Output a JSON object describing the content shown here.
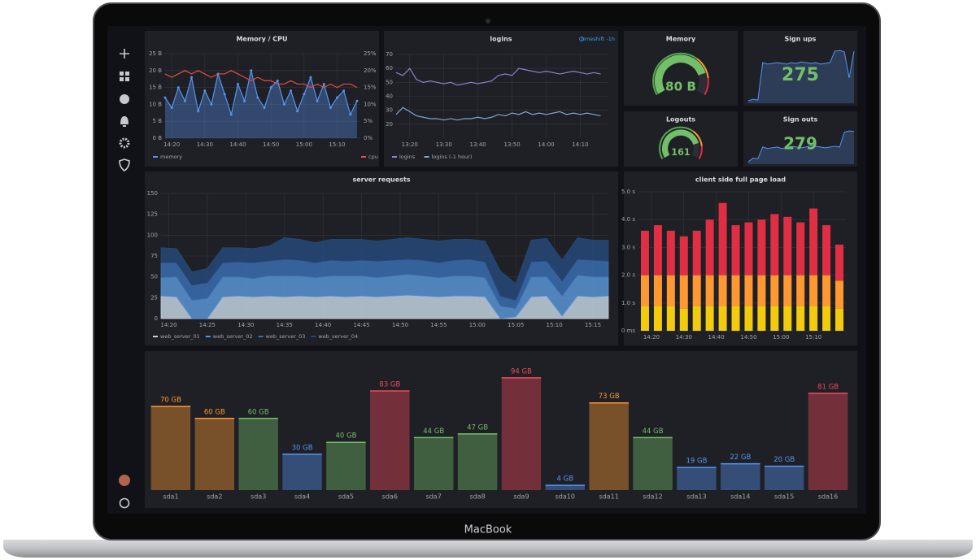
{
  "brand": "MacBook",
  "chart_data": [
    {
      "type": "line",
      "title": "Memory / CPU",
      "grid": true,
      "x": [
        "14:18",
        "14:20",
        "14:22",
        "14:24",
        "14:26",
        "14:28",
        "14:30",
        "14:32",
        "14:34",
        "14:36",
        "14:38",
        "14:40",
        "14:42",
        "14:44",
        "14:46",
        "14:48",
        "14:50",
        "14:52",
        "14:54",
        "14:56",
        "14:58",
        "15:00",
        "15:02",
        "15:04",
        "15:06",
        "15:08",
        "15:10",
        "15:12",
        "15:14",
        "15:16"
      ],
      "xlim": [
        "14:18",
        "15:17"
      ],
      "xticks": [
        "14:20",
        "14:30",
        "14:40",
        "14:50",
        "15:00",
        "15:10"
      ],
      "ylim": [
        0,
        25
      ],
      "yticks": [
        {
          "value": 0,
          "label": "0 B"
        },
        {
          "value": 5,
          "label": "5 B"
        },
        {
          "value": 10,
          "label": "10 B"
        },
        {
          "value": 15,
          "label": "15 B"
        },
        {
          "value": 20,
          "label": "20 B"
        },
        {
          "value": 25,
          "label": "25 B"
        }
      ],
      "y2lim": [
        0,
        25
      ],
      "y2ticks": [
        {
          "value": 0,
          "label": "0%"
        },
        {
          "value": 5,
          "label": "5%"
        },
        {
          "value": 10,
          "label": "10%"
        },
        {
          "value": 15,
          "label": "15%"
        },
        {
          "value": 20,
          "label": "20%"
        },
        {
          "value": 25,
          "label": "25%"
        }
      ],
      "series": [
        {
          "name": "memory",
          "color": "#5794f2",
          "fill": true,
          "points": true,
          "values": [
            12,
            9,
            15,
            11,
            18,
            8,
            14,
            10,
            19,
            13,
            7,
            16,
            11,
            20,
            12,
            9,
            15,
            17,
            10,
            14,
            8,
            13,
            18,
            11,
            16,
            9,
            12,
            14,
            7,
            11
          ]
        },
        {
          "name": "cpu",
          "color": "#e24d42",
          "axis": "y2",
          "values": [
            19,
            18,
            19,
            20,
            19,
            20,
            19,
            18,
            19,
            19,
            20,
            19,
            18,
            17,
            18,
            17,
            17,
            16,
            16,
            17,
            16,
            16,
            15,
            16,
            15,
            16,
            15,
            16,
            16,
            15
          ]
        }
      ]
    },
    {
      "type": "line",
      "title": "logins",
      "annotation": "timeshift -1h",
      "grid": true,
      "x": [
        "13:16",
        "13:18",
        "13:20",
        "13:22",
        "13:24",
        "13:26",
        "13:28",
        "13:30",
        "13:32",
        "13:34",
        "13:36",
        "13:38",
        "13:40",
        "13:42",
        "13:44",
        "13:46",
        "13:48",
        "13:50",
        "13:52",
        "13:54",
        "13:56",
        "13:58",
        "14:00",
        "14:02",
        "14:04",
        "14:06",
        "14:08",
        "14:10",
        "14:12",
        "14:14",
        "14:16"
      ],
      "xlim": [
        "13:16",
        "14:18"
      ],
      "xticks": [
        "13:20",
        "13:30",
        "13:40",
        "13:50",
        "14:00",
        "14:10"
      ],
      "ylim": [
        10,
        70
      ],
      "yticks": [
        20,
        30,
        40,
        50,
        60,
        70
      ],
      "series": [
        {
          "name": "logins",
          "color": "#8f7fd0",
          "values": [
            57,
            55,
            60,
            52,
            50,
            51,
            50,
            49,
            50,
            48,
            49,
            50,
            49,
            50,
            51,
            55,
            56,
            55,
            60,
            59,
            58,
            57,
            58,
            57,
            56,
            57,
            58,
            57,
            56,
            57,
            56
          ]
        },
        {
          "name": "logins (-1 hour)",
          "color": "#7ea6d8",
          "values": [
            27,
            32,
            29,
            26,
            25,
            24,
            24,
            23,
            24,
            23,
            24,
            24,
            25,
            24,
            25,
            27,
            26,
            28,
            27,
            29,
            27,
            28,
            27,
            28,
            29,
            27,
            28,
            27,
            28,
            27,
            26
          ]
        }
      ]
    },
    {
      "type": "gauge",
      "title": "Memory",
      "value": 80,
      "value_label": "80 B",
      "min": 0,
      "max": 100,
      "color": "#73bf69"
    },
    {
      "type": "stat",
      "title": "Sign ups",
      "value": 275,
      "color": "#73bf69",
      "spark_color": "#5794f2",
      "sparkline": [
        30,
        32,
        31,
        80,
        78,
        79,
        80,
        79,
        78,
        80,
        79,
        81,
        80,
        79,
        80,
        78,
        79,
        80,
        95,
        96,
        94,
        60,
        95
      ]
    },
    {
      "type": "gauge",
      "title": "Logouts",
      "value": 161,
      "min": 0,
      "max": 200,
      "color": "#73bf69"
    },
    {
      "type": "stat",
      "title": "Sign outs",
      "value": 279,
      "color": "#73bf69",
      "spark_color": "#5794f2",
      "sparkline": [
        40,
        45,
        44,
        60,
        58,
        59,
        60,
        58,
        59,
        61,
        60,
        59,
        60,
        62,
        61,
        60,
        59,
        60,
        61,
        60,
        80,
        82,
        81
      ]
    },
    {
      "type": "area",
      "title": "server requests",
      "stacked": true,
      "grid": true,
      "x": [
        "14:19",
        "14:21",
        "14:23",
        "14:25",
        "14:27",
        "14:29",
        "14:31",
        "14:33",
        "14:35",
        "14:37",
        "14:39",
        "14:41",
        "14:43",
        "14:45",
        "14:47",
        "14:49",
        "14:51",
        "14:53",
        "14:55",
        "14:57",
        "14:59",
        "15:01",
        "15:03",
        "15:05",
        "15:07",
        "15:09",
        "15:11",
        "15:13",
        "15:15",
        "15:17"
      ],
      "xlim": [
        "14:19",
        "15:17"
      ],
      "xticks": [
        "14:20",
        "14:25",
        "14:30",
        "14:35",
        "14:40",
        "14:45",
        "14:50",
        "14:55",
        "15:00",
        "15:05",
        "15:10",
        "15:15"
      ],
      "ylim": [
        0,
        150
      ],
      "yticks": [
        0,
        25,
        50,
        75,
        100,
        125,
        150
      ],
      "series": [
        {
          "name": "web_server_01",
          "color": "#c3d3e0",
          "values": [
            27,
            26,
            0,
            0,
            26,
            27,
            26,
            27,
            26,
            27,
            26,
            27,
            26,
            27,
            26,
            27,
            28,
            27,
            26,
            27,
            27,
            26,
            0,
            2,
            26,
            27,
            3,
            27,
            26,
            27
          ]
        },
        {
          "name": "web_server_02",
          "color": "#5b95d6",
          "values": [
            22,
            24,
            22,
            24,
            24,
            23,
            22,
            24,
            25,
            24,
            23,
            24,
            25,
            24,
            23,
            24,
            25,
            24,
            23,
            24,
            24,
            23,
            15,
            10,
            24,
            23,
            24,
            25,
            24,
            23
          ]
        },
        {
          "name": "web_server_03",
          "color": "#3a6fb0",
          "values": [
            18,
            17,
            18,
            19,
            17,
            18,
            19,
            18,
            20,
            19,
            18,
            19,
            18,
            19,
            20,
            19,
            18,
            19,
            18,
            19,
            20,
            19,
            12,
            10,
            18,
            19,
            18,
            19,
            20,
            19
          ]
        },
        {
          "name": "web_server_04",
          "color": "#27497a",
          "values": [
            18,
            17,
            16,
            17,
            18,
            17,
            17,
            18,
            26,
            25,
            24,
            25,
            26,
            25,
            24,
            25,
            26,
            25,
            26,
            25,
            24,
            25,
            30,
            20,
            26,
            27,
            25,
            26,
            24,
            25
          ]
        }
      ]
    },
    {
      "type": "bar",
      "title": "client side full page load",
      "stacked": true,
      "grid": true,
      "x": [
        "14:18",
        "14:22",
        "14:26",
        "14:30",
        "14:34",
        "14:38",
        "14:42",
        "14:46",
        "14:50",
        "14:54",
        "14:58",
        "15:02",
        "15:06",
        "15:10",
        "15:14",
        "15:18"
      ],
      "xlim": [
        "14:16",
        "15:20"
      ],
      "xticks": [
        "14:20",
        "14:30",
        "14:40",
        "14:50",
        "15:00",
        "15:10"
      ],
      "ylim": [
        0,
        5
      ],
      "yticks": [
        {
          "value": 0,
          "label": "0 ms"
        },
        {
          "value": 1,
          "label": "1.0 s"
        },
        {
          "value": 2,
          "label": "2.0 s"
        },
        {
          "value": 3,
          "label": "3.0 s"
        },
        {
          "value": 4,
          "label": "4.0 s"
        },
        {
          "value": 5,
          "label": "5.0 s"
        }
      ],
      "series": [
        {
          "color": "#f2cc0c",
          "values": [
            0.9,
            0.9,
            0.9,
            0.8,
            0.9,
            0.9,
            0.9,
            0.9,
            0.9,
            0.9,
            0.9,
            0.9,
            0.9,
            0.9,
            0.9,
            0.8
          ]
        },
        {
          "color": "#ff9830",
          "values": [
            1.1,
            1.1,
            1.1,
            1.2,
            1.1,
            1.1,
            1.1,
            1.1,
            1.1,
            1.1,
            1.1,
            1.1,
            1.1,
            1.1,
            1.1,
            1.0
          ]
        },
        {
          "color": "#e02f44",
          "values": [
            1.6,
            1.8,
            1.6,
            1.4,
            1.6,
            2.0,
            2.6,
            1.8,
            1.9,
            2.0,
            2.2,
            2.1,
            1.9,
            2.4,
            1.8,
            1.3
          ]
        }
      ]
    },
    {
      "type": "bar",
      "ylim": [
        0,
        100
      ],
      "categories": [
        "sda1",
        "sda2",
        "sda3",
        "sda4",
        "sda5",
        "sda6",
        "sda7",
        "sda8",
        "sda9",
        "sda10",
        "sda11",
        "sda12",
        "sda13",
        "sda14",
        "sda15",
        "sda16"
      ],
      "values": [
        70,
        60,
        60,
        30,
        40,
        83,
        44,
        47,
        94,
        4,
        73,
        44,
        19,
        22,
        20,
        81
      ],
      "value_labels": [
        "70 GB",
        "60 GB",
        "60 GB",
        "30 GB",
        "40 GB",
        "83 GB",
        "44 GB",
        "47 GB",
        "94 GB",
        "4 GB",
        "73 GB",
        "44 GB",
        "19 GB",
        "22 GB",
        "20 GB",
        "81 GB"
      ],
      "colors": [
        "#ff9830",
        "#ff9830",
        "#73bf69",
        "#5794f2",
        "#73bf69",
        "#f2495c",
        "#73bf69",
        "#73bf69",
        "#f2495c",
        "#5794f2",
        "#ff9830",
        "#73bf69",
        "#5794f2",
        "#5794f2",
        "#5794f2",
        "#f2495c"
      ]
    }
  ]
}
